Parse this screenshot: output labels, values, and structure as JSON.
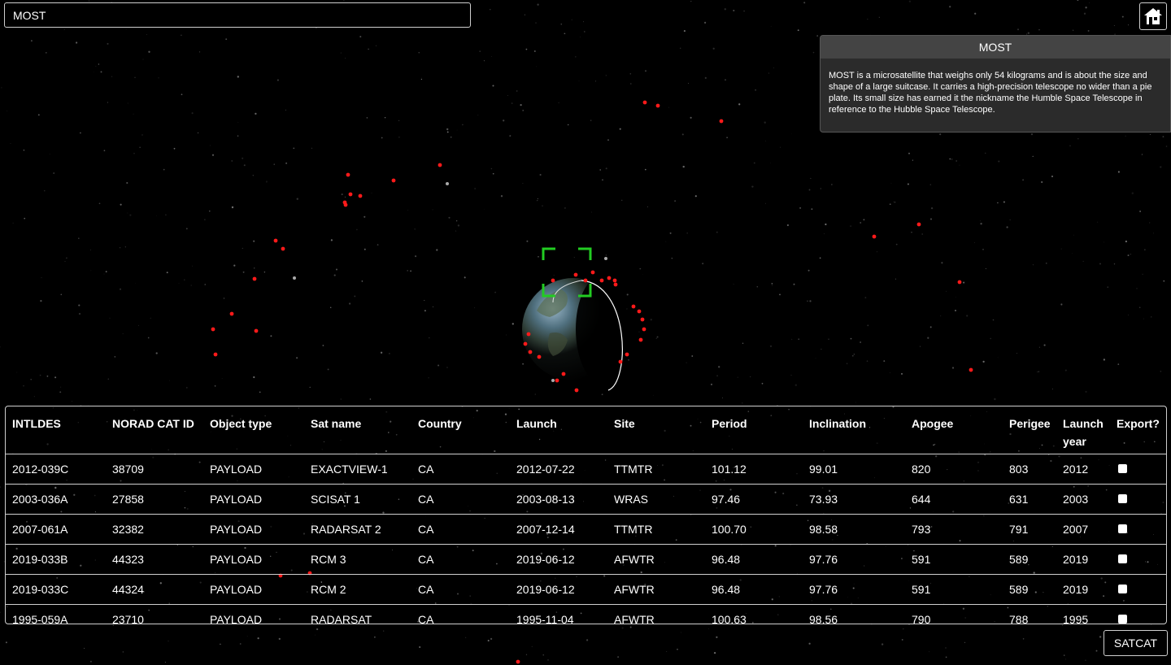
{
  "search": {
    "value": "MOST"
  },
  "info_panel": {
    "title": "MOST",
    "description": "MOST is a microsatellite that weighs only 54 kilograms and is about the size and shape of a large suitcase. It carries a high-precision telescope no wider than a pie plate. Its small size has earned it the nickname the Humble Space Telescope in reference to the Hubble Space Telescope."
  },
  "table": {
    "headers": [
      "INTLDES",
      "NORAD CAT ID",
      "Object type",
      "Sat name",
      "Country",
      "Launch",
      "Site",
      "Period",
      "Inclination",
      "Apogee",
      "Perigee",
      "Launch year",
      "Export?"
    ],
    "rows": [
      [
        "2012-039C",
        "38709",
        "PAYLOAD",
        "EXACTVIEW-1",
        "CA",
        "2012-07-22",
        "TTMTR",
        "101.12",
        "99.01",
        "820",
        "803",
        "2012"
      ],
      [
        "2003-036A",
        "27858",
        "PAYLOAD",
        "SCISAT 1",
        "CA",
        "2003-08-13",
        "WRAS",
        "97.46",
        "73.93",
        "644",
        "631",
        "2003"
      ],
      [
        "2007-061A",
        "32382",
        "PAYLOAD",
        "RADARSAT 2",
        "CA",
        "2007-12-14",
        "TTMTR",
        "100.70",
        "98.58",
        "793",
        "791",
        "2007"
      ],
      [
        "2019-033B",
        "44323",
        "PAYLOAD",
        "RCM 3",
        "CA",
        "2019-06-12",
        "AFWTR",
        "96.48",
        "97.76",
        "591",
        "589",
        "2019"
      ],
      [
        "2019-033C",
        "44324",
        "PAYLOAD",
        "RCM 2",
        "CA",
        "2019-06-12",
        "AFWTR",
        "96.48",
        "97.76",
        "591",
        "589",
        "2019"
      ],
      [
        "1995-059A",
        "23710",
        "PAYLOAD",
        "RADARSAT",
        "CA",
        "1995-11-04",
        "AFWTR",
        "100.63",
        "98.56",
        "790",
        "788",
        "1995"
      ]
    ]
  },
  "buttons": {
    "satcat": "SATCAT"
  },
  "icons": {
    "home": "home-icon",
    "selection": "selection-bracket-icon"
  },
  "colors": {
    "background": "#000000",
    "satellite_marker": "#ff1a1a",
    "selection_bracket": "#22cc22",
    "orbit_path": "#ffffff"
  }
}
